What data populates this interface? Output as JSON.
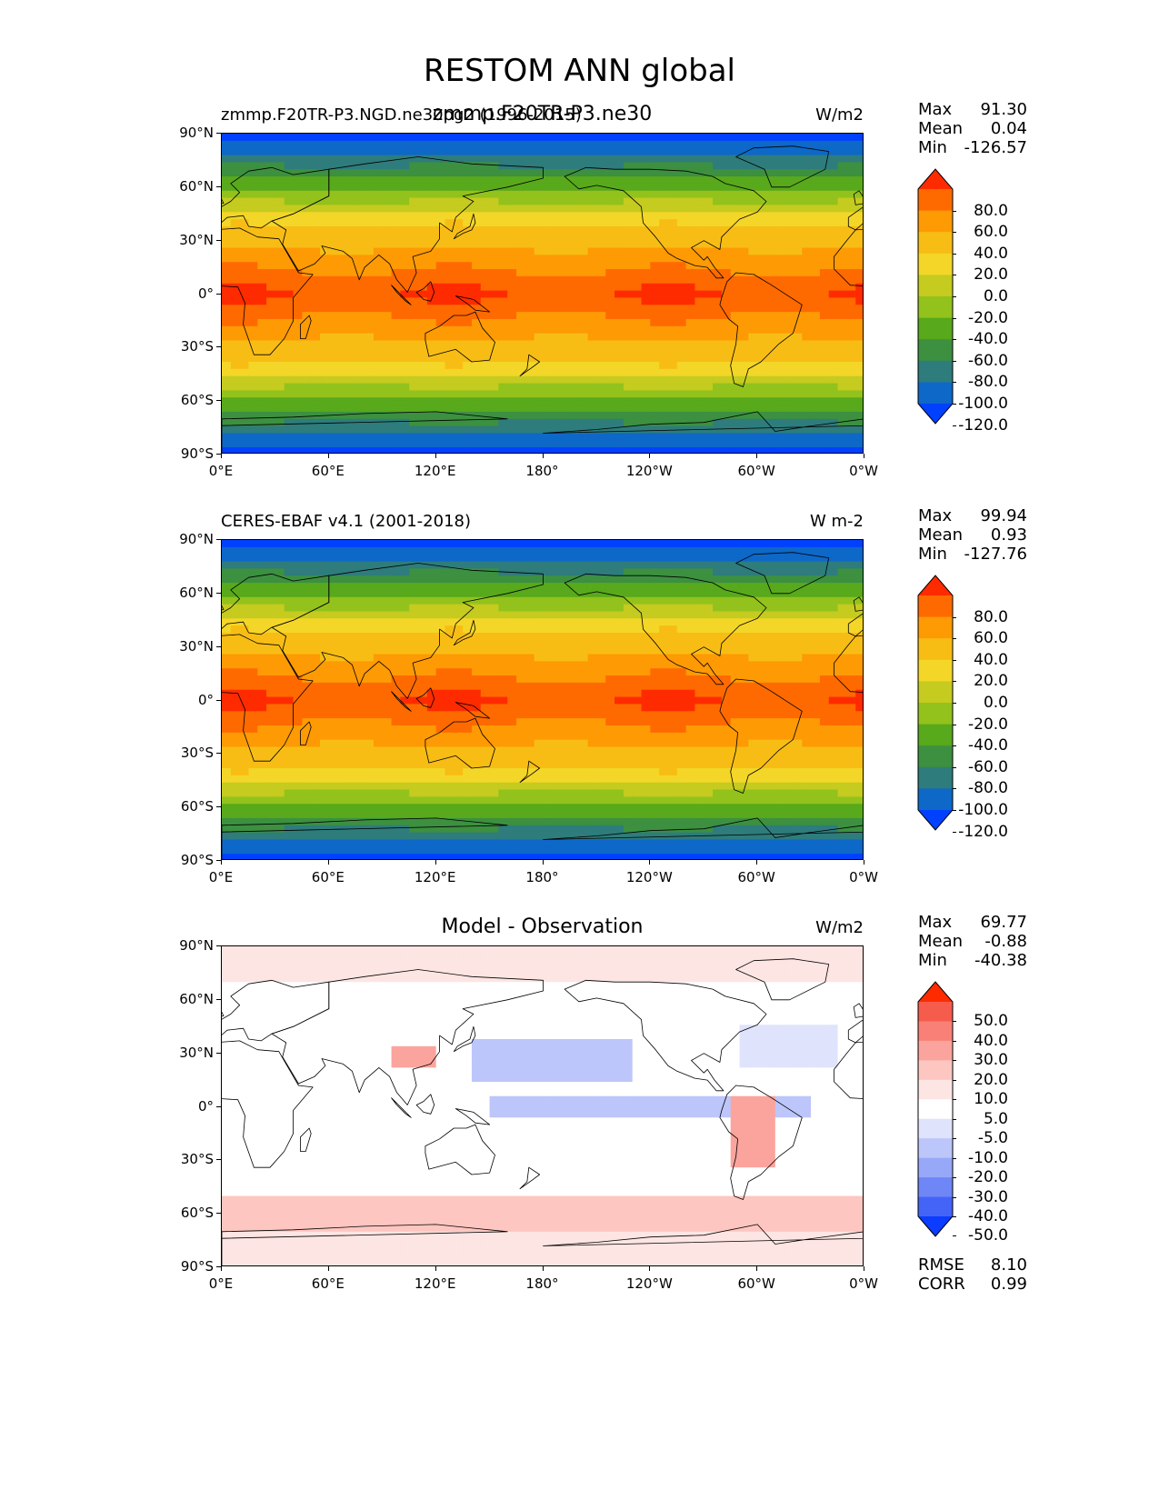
{
  "figure": {
    "title": "RESTOM ANN global"
  },
  "chart_data": [
    {
      "type": "heatmap",
      "title_left": "zmmp.F20TR-P3.NGD.ne30pg2 (1996-2015)",
      "title_center": "zmmp.F20TR-P3.ne30",
      "units": "W/m2",
      "stats": {
        "Max": "91.30",
        "Mean": "0.04",
        "Min": "-126.57"
      },
      "colorbar_ticks": [
        "80.0",
        "60.0",
        "40.0",
        "20.0",
        "0.0",
        "-20.0",
        "-40.0",
        "-60.0",
        "-80.0",
        "-100.0",
        "-120.0"
      ],
      "colorbar_colors": [
        "#ff2b00",
        "#ff6a00",
        "#fe9a04",
        "#f8bd15",
        "#f3d628",
        "#c5cb1f",
        "#93c21c",
        "#58a91b",
        "#3c9040",
        "#2e7c7c",
        "#0d68c8",
        "#0040ff"
      ],
      "yticks": [
        "90°N",
        "60°N",
        "30°N",
        "0°",
        "30°S",
        "60°S",
        "90°S"
      ],
      "xticks": [
        "0°E",
        "60°E",
        "120°E",
        "180°",
        "120°W",
        "60°W",
        "0°W"
      ],
      "xlim": [
        0,
        360
      ],
      "ylim": [
        -90,
        90
      ]
    },
    {
      "type": "heatmap",
      "title_left": "CERES-EBAF v4.1 (2001-2018)",
      "title_center": "",
      "units": "W m-2",
      "stats": {
        "Max": "99.94",
        "Mean": "0.93",
        "Min": "-127.76"
      },
      "colorbar_ticks": [
        "80.0",
        "60.0",
        "40.0",
        "20.0",
        "0.0",
        "-20.0",
        "-40.0",
        "-60.0",
        "-80.0",
        "-100.0",
        "-120.0"
      ],
      "colorbar_colors": [
        "#ff2b00",
        "#ff6a00",
        "#fe9a04",
        "#f8bd15",
        "#f3d628",
        "#c5cb1f",
        "#93c21c",
        "#58a91b",
        "#3c9040",
        "#2e7c7c",
        "#0d68c8",
        "#0040ff"
      ],
      "yticks": [
        "90°N",
        "60°N",
        "30°N",
        "0°",
        "30°S",
        "60°S",
        "90°S"
      ],
      "xticks": [
        "0°E",
        "60°E",
        "120°E",
        "180°",
        "120°W",
        "60°W",
        "0°W"
      ],
      "xlim": [
        0,
        360
      ],
      "ylim": [
        -90,
        90
      ]
    },
    {
      "type": "heatmap",
      "title_left": "",
      "title_center": "Model - Observation",
      "units": "W/m2",
      "stats": {
        "Max": "69.77",
        "Mean": "-0.88",
        "Min": "-40.38"
      },
      "extra_stats": {
        "RMSE": "8.10",
        "CORR": "0.99"
      },
      "colorbar_ticks": [
        "50.0",
        "40.0",
        "30.0",
        "20.0",
        "10.0",
        "5.0",
        "-5.0",
        "-10.0",
        "-20.0",
        "-30.0",
        "-40.0",
        "-50.0"
      ],
      "colorbar_colors": [
        "#ff2b00",
        "#f65c4c",
        "#f98076",
        "#fba49d",
        "#fdc6c1",
        "#fde5e3",
        "#ffffff",
        "#dfe3fb",
        "#bcc6fa",
        "#97a8f8",
        "#6e86f6",
        "#4464f8",
        "#0b3cff"
      ],
      "yticks": [
        "90°N",
        "60°N",
        "30°N",
        "0°",
        "30°S",
        "60°S",
        "90°S"
      ],
      "xticks": [
        "0°E",
        "60°E",
        "120°E",
        "180°",
        "120°W",
        "60°W",
        "0°W"
      ],
      "xlim": [
        0,
        360
      ],
      "ylim": [
        -90,
        90
      ]
    }
  ]
}
